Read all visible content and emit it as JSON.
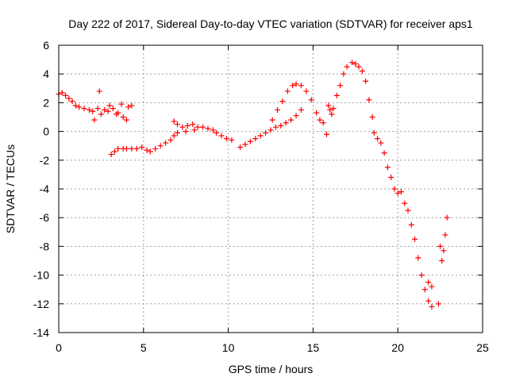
{
  "chart_data": {
    "type": "scatter",
    "title": "Day 222 of 2017, Sidereal Day-to-day VTEC variation (SDTVAR) for receiver aps1",
    "xlabel": "GPS time / hours",
    "ylabel": "SDTVAR / TECUs",
    "xlim": [
      0,
      25
    ],
    "ylim": [
      -14,
      6
    ],
    "xticks": [
      0,
      5,
      10,
      15,
      20,
      25
    ],
    "yticks": [
      -14,
      -12,
      -10,
      -8,
      -6,
      -4,
      -2,
      0,
      2,
      4,
      6
    ],
    "grid": true,
    "marker": "+",
    "color": "#ff0000",
    "series": [
      {
        "name": "aps1",
        "points": [
          [
            0.0,
            2.6
          ],
          [
            0.2,
            2.7
          ],
          [
            0.4,
            2.5
          ],
          [
            0.6,
            2.3
          ],
          [
            0.8,
            2.1
          ],
          [
            1.0,
            1.8
          ],
          [
            1.2,
            1.7
          ],
          [
            1.5,
            1.6
          ],
          [
            1.8,
            1.5
          ],
          [
            2.0,
            1.4
          ],
          [
            2.1,
            0.8
          ],
          [
            2.3,
            1.6
          ],
          [
            2.4,
            2.8
          ],
          [
            2.5,
            1.2
          ],
          [
            2.7,
            1.5
          ],
          [
            2.9,
            1.4
          ],
          [
            3.0,
            1.8
          ],
          [
            3.2,
            1.6
          ],
          [
            3.4,
            1.2
          ],
          [
            3.5,
            1.3
          ],
          [
            3.7,
            1.9
          ],
          [
            3.8,
            1.0
          ],
          [
            4.0,
            0.8
          ],
          [
            4.1,
            1.7
          ],
          [
            4.3,
            1.8
          ],
          [
            3.1,
            -1.6
          ],
          [
            3.3,
            -1.4
          ],
          [
            3.5,
            -1.2
          ],
          [
            3.8,
            -1.2
          ],
          [
            4.0,
            -1.2
          ],
          [
            4.3,
            -1.2
          ],
          [
            4.6,
            -1.2
          ],
          [
            4.9,
            -1.1
          ],
          [
            5.2,
            -1.3
          ],
          [
            5.4,
            -1.4
          ],
          [
            5.7,
            -1.2
          ],
          [
            6.0,
            -1.0
          ],
          [
            6.3,
            -0.8
          ],
          [
            6.6,
            -0.6
          ],
          [
            6.8,
            -0.3
          ],
          [
            6.8,
            0.7
          ],
          [
            7.0,
            0.5
          ],
          [
            7.3,
            0.3
          ],
          [
            7.6,
            0.4
          ],
          [
            7.9,
            0.5
          ],
          [
            8.2,
            0.3
          ],
          [
            8.5,
            0.3
          ],
          [
            8.8,
            0.2
          ],
          [
            9.1,
            0.1
          ],
          [
            7.0,
            -0.1
          ],
          [
            7.5,
            0.0
          ],
          [
            8.0,
            0.1
          ],
          [
            9.3,
            -0.1
          ],
          [
            9.6,
            -0.3
          ],
          [
            9.9,
            -0.5
          ],
          [
            10.2,
            -0.6
          ],
          [
            10.7,
            -1.1
          ],
          [
            11.0,
            -0.9
          ],
          [
            11.3,
            -0.7
          ],
          [
            11.6,
            -0.5
          ],
          [
            11.9,
            -0.3
          ],
          [
            12.2,
            -0.1
          ],
          [
            12.5,
            0.1
          ],
          [
            12.8,
            0.3
          ],
          [
            13.1,
            0.4
          ],
          [
            13.4,
            0.6
          ],
          [
            13.7,
            0.8
          ],
          [
            14.0,
            1.1
          ],
          [
            14.3,
            1.5
          ],
          [
            12.6,
            0.8
          ],
          [
            12.9,
            1.5
          ],
          [
            13.2,
            2.1
          ],
          [
            13.5,
            2.8
          ],
          [
            13.8,
            3.2
          ],
          [
            14.0,
            3.3
          ],
          [
            14.3,
            3.2
          ],
          [
            14.6,
            2.8
          ],
          [
            14.9,
            2.2
          ],
          [
            15.2,
            1.3
          ],
          [
            15.4,
            0.8
          ],
          [
            15.6,
            0.6
          ],
          [
            15.8,
            -0.2
          ],
          [
            15.9,
            1.8
          ],
          [
            16.0,
            1.5
          ],
          [
            16.1,
            1.2
          ],
          [
            16.2,
            1.6
          ],
          [
            16.4,
            2.5
          ],
          [
            16.6,
            3.2
          ],
          [
            16.8,
            4.0
          ],
          [
            17.0,
            4.5
          ],
          [
            17.3,
            4.8
          ],
          [
            17.5,
            4.7
          ],
          [
            17.7,
            4.5
          ],
          [
            17.9,
            4.2
          ],
          [
            18.1,
            3.5
          ],
          [
            18.3,
            2.2
          ],
          [
            18.5,
            1.0
          ],
          [
            18.6,
            -0.1
          ],
          [
            18.8,
            -0.5
          ],
          [
            19.0,
            -0.8
          ],
          [
            19.2,
            -1.5
          ],
          [
            19.4,
            -2.5
          ],
          [
            19.6,
            -3.2
          ],
          [
            19.8,
            -4.0
          ],
          [
            20.0,
            -4.3
          ],
          [
            20.2,
            -4.2
          ],
          [
            20.4,
            -5.0
          ],
          [
            20.6,
            -5.5
          ],
          [
            20.8,
            -6.5
          ],
          [
            21.0,
            -7.5
          ],
          [
            21.2,
            -8.8
          ],
          [
            21.4,
            -10.0
          ],
          [
            21.6,
            -11.0
          ],
          [
            21.8,
            -11.8
          ],
          [
            22.0,
            -12.2
          ],
          [
            21.8,
            -10.5
          ],
          [
            22.0,
            -10.8
          ],
          [
            22.4,
            -12.0
          ],
          [
            22.5,
            -8.0
          ],
          [
            22.6,
            -9.0
          ],
          [
            22.7,
            -8.3
          ],
          [
            22.8,
            -7.2
          ],
          [
            22.9,
            -6.0
          ]
        ]
      }
    ]
  }
}
